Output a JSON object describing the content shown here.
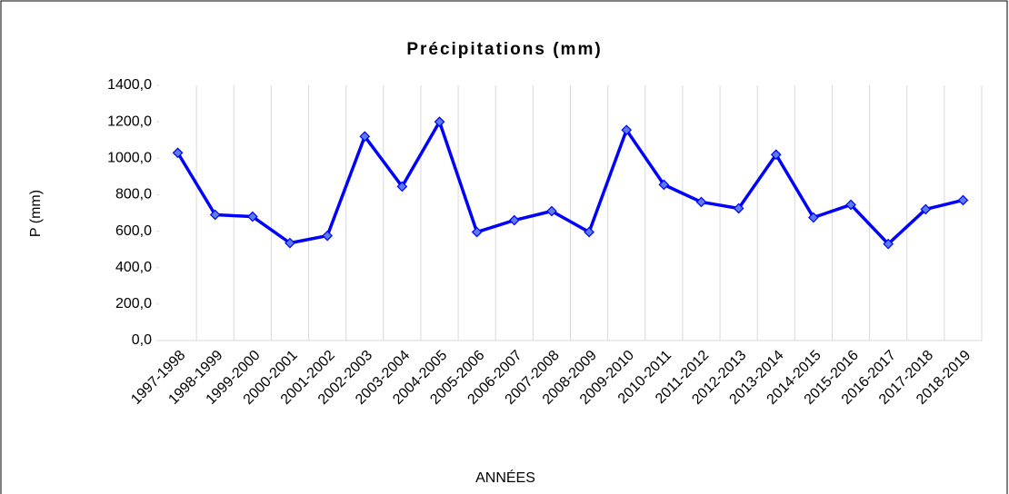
{
  "chart_data": {
    "type": "line",
    "title": "Précipitations (mm)",
    "x_label": "ANNÉES",
    "y_label": "P (mm)",
    "categories": [
      "1997-1998",
      "1998-1999",
      "1999-2000",
      "2000-2001",
      "2001-2002",
      "2002-2003",
      "2003-2004",
      "2004-2005",
      "2005-2006",
      "2006-2007",
      "2007-2008",
      "2008-2009",
      "2009-2010",
      "2010-2011",
      "2011-2012",
      "2012-2013",
      "2013-2014",
      "2014-2015",
      "2015-2016",
      "2016-2017",
      "2017-2018",
      "2018-2019"
    ],
    "series": [
      {
        "name": "P (mm)",
        "color": "#0000ff",
        "marker_color": "#5a7de8",
        "values": [
          1030,
          690,
          680,
          535,
          575,
          1120,
          845,
          1200,
          595,
          660,
          710,
          595,
          1155,
          855,
          760,
          725,
          1020,
          675,
          745,
          530,
          720,
          770
        ]
      }
    ],
    "ylim": [
      0,
      1400
    ],
    "yticks": [
      {
        "value": 0,
        "label": "0,0"
      },
      {
        "value": 200,
        "label": "200,0"
      },
      {
        "value": 400,
        "label": "400,0"
      },
      {
        "value": 600,
        "label": "600,0"
      },
      {
        "value": 800,
        "label": "800,0"
      },
      {
        "value": 1000,
        "label": "1000,0"
      },
      {
        "value": 1200,
        "label": "1200,0"
      },
      {
        "value": 1400,
        "label": "1400,0"
      }
    ],
    "grid": "x"
  }
}
